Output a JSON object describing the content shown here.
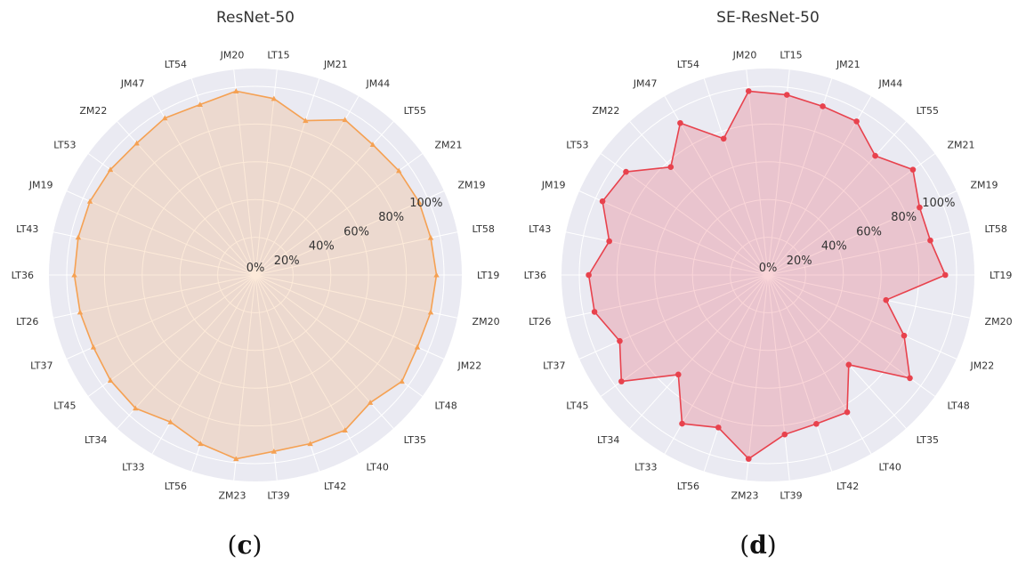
{
  "chart_data": [
    {
      "type": "radar",
      "title": "ResNet-50",
      "panel": {
        "open": "(",
        "letter": "c",
        "close": ")"
      },
      "color": "#f5a153",
      "fill": "#f5a153",
      "marker": "triangle",
      "radial_ticks": [
        "0%",
        "20%",
        "40%",
        "60%",
        "80%",
        "100%"
      ],
      "rlim": [
        0,
        100
      ],
      "categories": [
        "LT19",
        "LT58",
        "ZM19",
        "ZM21",
        "LT55",
        "JM44",
        "JM21",
        "LT15",
        "JM20",
        "LT54",
        "JM47",
        "ZM22",
        "LT53",
        "JM19",
        "LT43",
        "LT36",
        "LT26",
        "LT37",
        "LT45",
        "LT34",
        "LT33",
        "LT56",
        "ZM23",
        "LT39",
        "LT42",
        "LT40",
        "LT35",
        "LT48",
        "JM22",
        "ZM20"
      ],
      "values": [
        96,
        95,
        95,
        94,
        93,
        95,
        86,
        94,
        98,
        95,
        96,
        94,
        95,
        96,
        96,
        96,
        95,
        94,
        95,
        95,
        90,
        94,
        98,
        94,
        94,
        95,
        91,
        96,
        94,
        95
      ]
    },
    {
      "type": "radar",
      "title": "SE-ResNet-50",
      "panel": {
        "open": "(",
        "letter": "d",
        "close": ")"
      },
      "color": "#e8424d",
      "fill": "#e8424d",
      "marker": "circle",
      "radial_ticks": [
        "0%",
        "20%",
        "40%",
        "60%",
        "80%",
        "100%"
      ],
      "rlim": [
        0,
        100
      ],
      "categories": [
        "LT19",
        "LT58",
        "ZM19",
        "ZM21",
        "LT55",
        "JM44",
        "JM21",
        "LT15",
        "JM20",
        "LT54",
        "JM47",
        "ZM22",
        "LT53",
        "JM19",
        "LT43",
        "LT36",
        "LT26",
        "LT37",
        "LT45",
        "LT34",
        "LT33",
        "LT56",
        "ZM23",
        "LT39",
        "LT42",
        "LT40",
        "LT35",
        "LT48",
        "JM22",
        "ZM20"
      ],
      "values": [
        94,
        88,
        88,
        95,
        85,
        94,
        94,
        96,
        98,
        76,
        93,
        77,
        93,
        96,
        86,
        95,
        94,
        86,
        96,
        71,
        91,
        85,
        98,
        85,
        83,
        84,
        64,
        93,
        79,
        64
      ]
    }
  ]
}
